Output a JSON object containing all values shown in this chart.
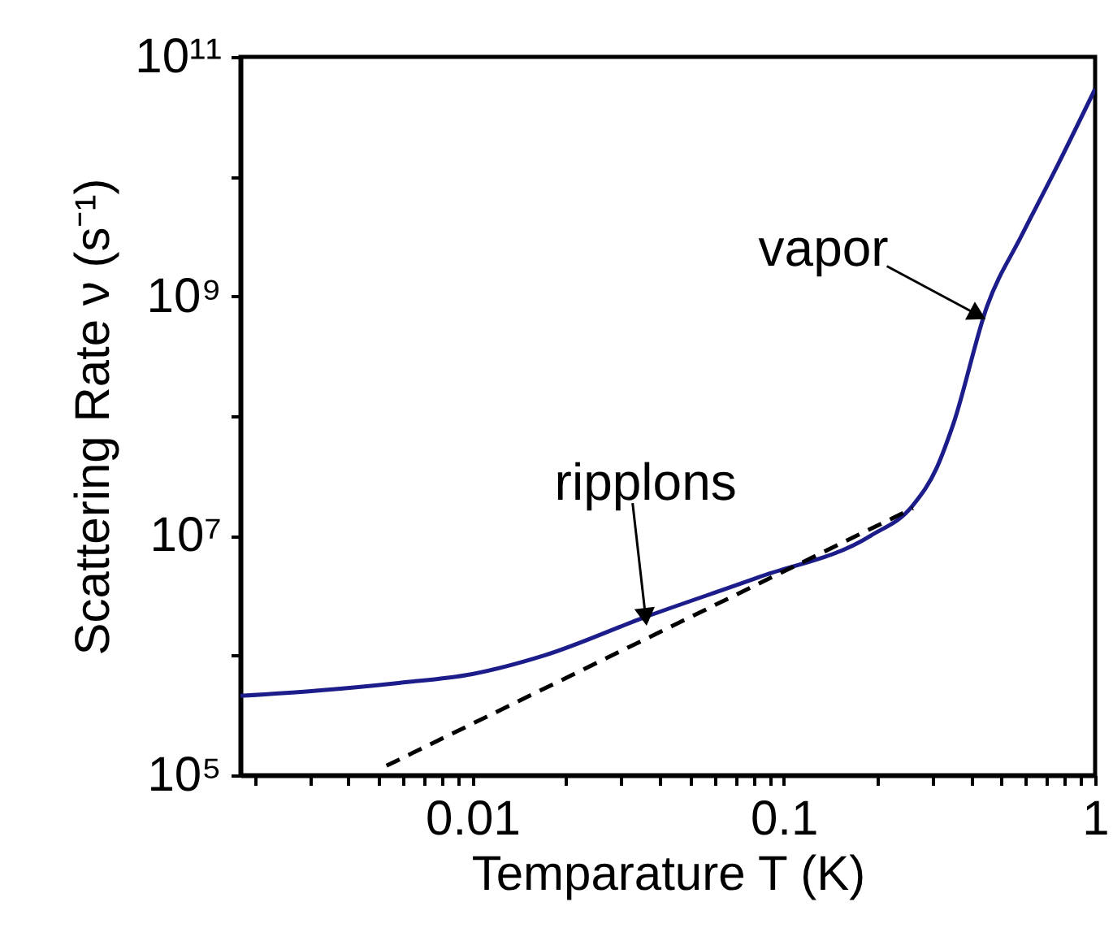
{
  "chart_data": {
    "type": "line",
    "xlabel": "Temparature T (K)",
    "ylabel": "Scattering Rate ν (s⁻¹)",
    "log": "xy",
    "grid": false,
    "xlim": [
      0.0018,
      1
    ],
    "ylim": [
      100000,
      100000000000
    ],
    "xticks": [
      {
        "value": 0.002,
        "label": null
      },
      {
        "value": 0.003,
        "label": null
      },
      {
        "value": 0.004,
        "label": null
      },
      {
        "value": 0.005,
        "label": null
      },
      {
        "value": 0.006,
        "label": null
      },
      {
        "value": 0.007,
        "label": null
      },
      {
        "value": 0.008,
        "label": null
      },
      {
        "value": 0.009,
        "label": null
      },
      0.01,
      {
        "value": 0.02,
        "label": null
      },
      {
        "value": 0.03,
        "label": null
      },
      {
        "value": 0.04,
        "label": null
      },
      {
        "value": 0.05,
        "label": null
      },
      {
        "value": 0.06,
        "label": null
      },
      {
        "value": 0.07,
        "label": null
      },
      {
        "value": 0.08,
        "label": null
      },
      {
        "value": 0.09,
        "label": null
      },
      0.1,
      {
        "value": 0.2,
        "label": null
      },
      {
        "value": 0.3,
        "label": null
      },
      {
        "value": 0.4,
        "label": null
      },
      {
        "value": 0.5,
        "label": null
      },
      {
        "value": 0.6,
        "label": null
      },
      {
        "value": 0.7,
        "label": null
      },
      {
        "value": 0.8,
        "label": null
      },
      {
        "value": 0.9,
        "label": null
      },
      1
    ],
    "yticks": [
      {
        "value": 100000,
        "label": "10⁵"
      },
      {
        "value": 1000000,
        "label": null
      },
      {
        "value": 10000000,
        "label": "10⁷"
      },
      {
        "value": 100000000,
        "label": null
      },
      {
        "value": 1000000000,
        "label": "10⁹"
      },
      {
        "value": 10000000000,
        "label": null
      },
      {
        "value": 100000000000,
        "label": "10¹¹"
      }
    ],
    "series": [
      {
        "color": "#1c1c8a",
        "line_style": "solid",
        "x": [
          0.0018,
          0.0032,
          0.0058,
          0.01,
          0.017,
          0.036,
          0.083,
          0.19,
          0.26,
          0.31,
          0.35,
          0.45,
          0.58,
          0.74,
          1
        ],
        "values": [
          460000,
          510000,
          590000,
          700000,
          1000000,
          2100000,
          4500000,
          10000000,
          18000000,
          37000000,
          85000000,
          830000000,
          3200000000,
          11000000000,
          54000000000
        ]
      },
      {
        "color": "#000000",
        "line_style": "dashed",
        "x": [
          0.0053,
          0.26
        ],
        "values": [
          120000,
          17000000
        ]
      }
    ],
    "annotations": [
      {
        "text": "ripplons",
        "x": 0.036,
        "y": 2100000
      },
      {
        "text": "vapor",
        "x": 0.42,
        "y": 700000000
      }
    ]
  }
}
